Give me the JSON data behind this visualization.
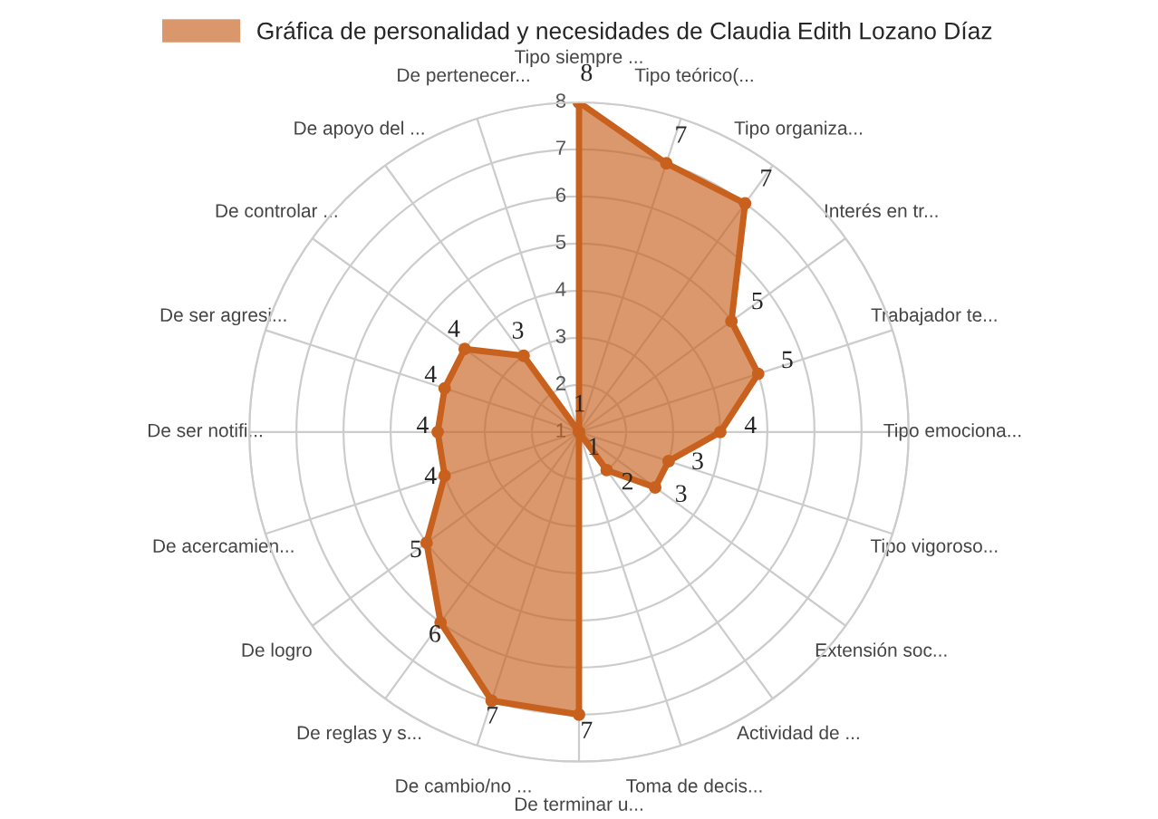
{
  "chart_data": {
    "type": "radar",
    "categories": [
      "Tipo siempre ...",
      "Tipo teórico(...",
      "Tipo organiza...",
      "Interés en tr...",
      "Trabajador te...",
      "Tipo emociona...",
      "Tipo vigoroso...",
      "Extensión soc...",
      "Actividad de ...",
      "Toma de decis...",
      "De terminar u...",
      "De cambio/no ...",
      "De reglas y s...",
      "De logro",
      "De acercamien...",
      "De ser notifi...",
      "De ser agresi...",
      "De controlar ...",
      "De apoyo del ...",
      "De pertenecer..."
    ],
    "series": [
      {
        "name": "Gráfica de personalidad y necesidades de Claudia Edith Lozano Díaz",
        "color": "#c8611e",
        "values": [
          8,
          7,
          7,
          5,
          5,
          4,
          3,
          3,
          2,
          1,
          7,
          7,
          6,
          5,
          4,
          4,
          4,
          4,
          3,
          1
        ]
      }
    ],
    "ylim": [
      1,
      8
    ],
    "yticks": [
      1,
      2,
      3,
      4,
      5,
      6,
      7,
      8
    ],
    "data_labels": true,
    "legend": "top",
    "marker": "circle",
    "grid": true
  }
}
